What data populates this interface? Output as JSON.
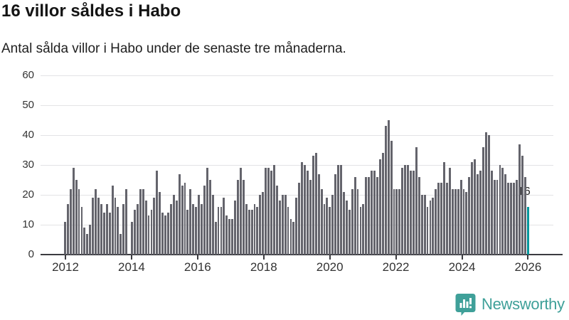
{
  "header": {
    "title": "16 villor såldes i Habo",
    "subtitle": "Antal sålda villor i Habo under de senaste tre månaderna."
  },
  "annotation": {
    "last_value_label": "16"
  },
  "footer": {
    "brand": "Newsworthy",
    "logo_icon": "bar-chart-speech-bubble-icon"
  },
  "colors": {
    "bar": "#64646c",
    "highlight": "#00969b",
    "gridline": "#e3e3e5",
    "axis": "#3b3b40",
    "axis_text": "#333333",
    "brand": "#3fa099"
  },
  "chart_data": {
    "type": "bar",
    "title": "16 villor såldes i Habo",
    "subtitle": "Antal sålda villor i Habo under de senaste tre månaderna.",
    "x_start": "2012-01",
    "x_end": "2025-11",
    "x_tick_labels": [
      "2012",
      "2014",
      "2016",
      "2018",
      "2020",
      "2022",
      "2024",
      "2026"
    ],
    "y_ticks": [
      0,
      10,
      20,
      30,
      40,
      50,
      60
    ],
    "ylim": [
      0,
      60
    ],
    "grid": true,
    "highlight_last": true,
    "highlight_value": 16,
    "values": [
      11,
      17,
      22,
      29,
      25,
      22,
      16,
      9,
      7,
      10,
      19,
      22,
      19,
      17,
      14,
      17,
      14,
      23,
      19,
      16,
      7,
      17,
      22,
      0,
      11,
      15,
      17,
      22,
      22,
      18,
      13,
      15,
      19,
      28,
      21,
      14,
      13,
      14,
      17,
      20,
      18,
      27,
      23,
      24,
      15,
      22,
      17,
      16,
      20,
      17,
      23,
      29,
      25,
      20,
      11,
      16,
      16,
      19,
      13,
      12,
      12,
      18,
      25,
      29,
      25,
      17,
      15,
      15,
      17,
      16,
      20,
      21,
      29,
      29,
      28,
      30,
      23,
      18,
      20,
      20,
      16,
      12,
      11,
      19,
      24,
      31,
      30,
      28,
      25,
      33,
      34,
      27,
      22,
      17,
      19,
      16,
      20,
      27,
      30,
      30,
      21,
      18,
      15,
      22,
      26,
      22,
      16,
      17,
      26,
      26,
      28,
      28,
      26,
      32,
      34,
      43,
      45,
      38,
      22,
      22,
      22,
      29,
      30,
      30,
      28,
      28,
      36,
      26,
      20,
      20,
      16,
      18,
      19,
      22,
      24,
      24,
      31,
      24,
      29,
      22,
      22,
      22,
      25,
      22,
      21,
      26,
      31,
      32,
      27,
      28,
      36,
      41,
      40,
      28,
      25,
      25,
      30,
      29,
      27,
      24,
      24,
      24,
      25,
      37,
      33,
      26,
      16
    ]
  }
}
